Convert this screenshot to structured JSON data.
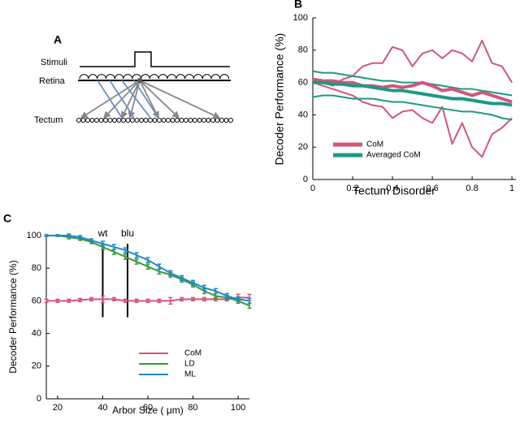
{
  "diagram": {
    "label": "A",
    "stimuli": "Stimuli",
    "retina": "Retina",
    "tectum": "Tectum"
  },
  "chart_data": [
    {
      "type": "line",
      "label": "B",
      "x_label": "Tectum Disorder",
      "y_label": "Decoder Performance (%)",
      "x": [
        0,
        0.05,
        0.1,
        0.15,
        0.2,
        0.25,
        0.3,
        0.35,
        0.4,
        0.45,
        0.5,
        0.55,
        0.6,
        0.65,
        0.7,
        0.75,
        0.8,
        0.85,
        0.9,
        0.95,
        1
      ],
      "xlim": [
        0,
        1.02
      ],
      "ylim": [
        0,
        100
      ],
      "xticks": [
        0,
        0.2,
        0.4,
        0.6,
        0.8,
        1
      ],
      "yticks": [
        0,
        20,
        40,
        60,
        80,
        100
      ],
      "legend": "lower left",
      "series": [
        {
          "color": "#d0567a",
          "width": 2,
          "values": [
            62,
            60,
            58,
            62,
            64,
            70,
            72,
            72,
            82,
            80,
            70,
            78,
            80,
            75,
            80,
            78,
            73,
            86,
            72,
            70,
            60
          ]
        },
        {
          "color": "#d0567a",
          "width": 2,
          "values": [
            60,
            58,
            56,
            54,
            52,
            48,
            46,
            45,
            38,
            42,
            43,
            38,
            35,
            45,
            22,
            35,
            20,
            14,
            28,
            32,
            38
          ]
        },
        {
          "color": "#1a9a85",
          "width": 2,
          "values": [
            67,
            66,
            66,
            65,
            64,
            63,
            62,
            61,
            61,
            60,
            60,
            60,
            59,
            58,
            57,
            56,
            56,
            55,
            54,
            53,
            52
          ]
        },
        {
          "color": "#1a9a85",
          "width": 2,
          "values": [
            51,
            52,
            52,
            51,
            50,
            50,
            50,
            49,
            48,
            48,
            47,
            46,
            45,
            44,
            43,
            42,
            42,
            41,
            40,
            38,
            37
          ]
        },
        {
          "name": "CoM",
          "color": "#d0567a",
          "width": 4,
          "values": [
            62,
            61,
            61,
            60,
            60,
            58,
            58,
            57,
            58,
            57,
            58,
            60,
            58,
            55,
            56,
            54,
            52,
            54,
            52,
            50,
            48
          ]
        },
        {
          "name": "Averaged CoM",
          "color": "#1a9a85",
          "width": 4,
          "values": [
            60,
            60,
            59,
            59,
            58,
            58,
            57,
            56,
            55,
            55,
            54,
            53,
            52,
            51,
            50,
            50,
            49,
            48,
            47,
            47,
            46
          ]
        }
      ]
    },
    {
      "type": "line",
      "label": "C",
      "x_label": "Arbor Size (  μm)",
      "y_label": "Decoder Performance (%)",
      "x": [
        15,
        20,
        25,
        30,
        35,
        40,
        45,
        50,
        55,
        60,
        65,
        70,
        75,
        80,
        85,
        90,
        95,
        100,
        105
      ],
      "xlim": [
        15,
        105
      ],
      "ylim": [
        0,
        100
      ],
      "xticks": [
        20,
        40,
        60,
        80,
        100
      ],
      "yticks": [
        0,
        20,
        40,
        60,
        80,
        100
      ],
      "legend": "lower right",
      "annotations": [
        {
          "label": "wt",
          "x": 40,
          "y": [
            50,
            95
          ]
        },
        {
          "label": "blu",
          "x": 51,
          "y": [
            50,
            95
          ]
        }
      ],
      "series": [
        {
          "name": "CoM",
          "color": "#d0567a",
          "width": 2,
          "values": [
            60,
            60,
            60,
            60.5,
            61,
            61,
            61,
            60,
            60,
            60,
            60,
            60,
            61,
            61,
            61,
            61,
            61,
            62,
            62
          ],
          "errors": [
            1,
            1,
            1,
            1,
            1,
            2,
            1,
            1,
            1,
            1,
            1,
            2,
            1,
            1,
            1,
            1,
            1,
            2,
            2
          ]
        },
        {
          "name": "LD",
          "color": "#3a9a3a",
          "width": 2,
          "values": [
            100,
            100,
            99,
            98,
            96,
            93,
            90,
            87,
            84,
            81,
            78,
            76,
            73,
            70,
            66,
            63,
            62,
            60,
            57
          ],
          "errors": [
            0.5,
            0.5,
            1,
            1,
            1,
            1.5,
            1.5,
            1.5,
            1.5,
            1.5,
            1.5,
            1.5,
            1.5,
            1.5,
            1.5,
            1.5,
            1.5,
            1.5,
            1.5
          ]
        },
        {
          "name": "ML",
          "color": "#1f88c8",
          "width": 2,
          "values": [
            100,
            100,
            100,
            99,
            97,
            95,
            93,
            91,
            88,
            85,
            81,
            77,
            74,
            71,
            68,
            66,
            63,
            61,
            60
          ],
          "errors": [
            0.5,
            0.5,
            1,
            1,
            1,
            1.5,
            1.5,
            1.5,
            1.5,
            1.5,
            1.5,
            1.5,
            1.5,
            1.5,
            1.5,
            1.5,
            1.5,
            1.5,
            1.5
          ]
        }
      ]
    }
  ]
}
